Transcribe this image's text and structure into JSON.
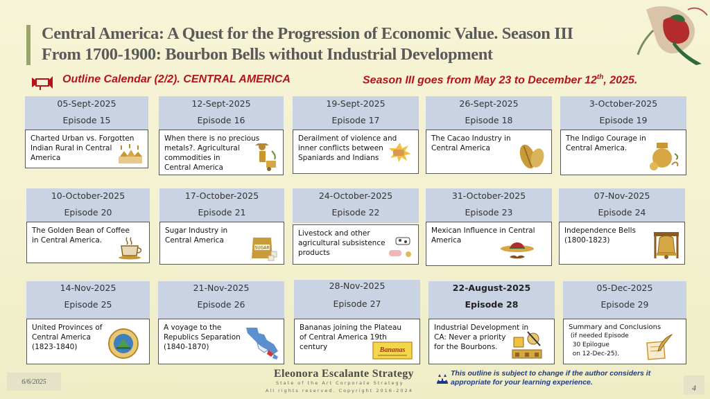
{
  "header": {
    "title_line1": "Central America:  A Quest for the Progression of Economic Value. Season III",
    "title_line2": "From 1700-1900: Bourbon Bells without Industrial Development"
  },
  "subheader": {
    "outline": "Outline Calendar (2/2).  CENTRAL AMERICA",
    "season_prefix": "Season III goes from May 23 to December 12",
    "season_sup": "th",
    "season_suffix": ", 2025."
  },
  "episodes": [
    {
      "date": "05-Sept-2025",
      "episode": "Episode 15",
      "lines": [
        "Charted Urban vs. Forgotten",
        "Indian Rural in Central",
        "America"
      ],
      "icon": "village-icon"
    },
    {
      "date": "12-Sept-2025",
      "episode": "Episode 16",
      "lines": [
        "When there is no precious",
        "metals?.  Agricultural",
        "commodities in",
        "Central America"
      ],
      "icon": "farmer-icon"
    },
    {
      "date": "19-Sept-2025",
      "episode": "Episode 17",
      "lines": [
        "Derailment of violence and",
        "inner conflicts between",
        "Spaniards and Indians"
      ],
      "icon": "fist-icon"
    },
    {
      "date": "26-Sept-2025",
      "episode": "Episode 18",
      "lines": [
        "The Cacao Industry in",
        "Central America"
      ],
      "icon": "cacao-icon"
    },
    {
      "date": "3-October-2025",
      "episode": "Episode 19",
      "lines": [
        "The Indigo Courage in",
        "Central America."
      ],
      "icon": "indigo-pot-icon"
    },
    {
      "date": "10-October-2025",
      "episode": "Episode 20",
      "lines": [
        "The Golden Bean of Coffee",
        "in Central America."
      ],
      "icon": "coffee-cup-icon"
    },
    {
      "date": "17-October-2025",
      "episode": "Episode 21",
      "lines": [
        "Sugar Industry in",
        "Central America"
      ],
      "icon": "sugar-bag-icon",
      "icon_label": "SUGAR"
    },
    {
      "date": "24-October-2025",
      "episode": "Episode 22",
      "lines": [
        "Livestock and other",
        "agricultural subsistence",
        "products"
      ],
      "icon": "livestock-icon"
    },
    {
      "date": "31-October-2025",
      "episode": "Episode 23",
      "lines": [
        "Mexican Influence in Central",
        "America"
      ],
      "icon": "sombrero-icon"
    },
    {
      "date": "07-Nov-2025",
      "episode": "Episode 24",
      "lines": [
        "Independence Bells",
        "(1800-1823)"
      ],
      "icon": "bell-icon"
    },
    {
      "date": "14-Nov-2025",
      "episode": "Episode 25",
      "lines": [
        "United Provinces of",
        "Central America",
        "(1823-1840)"
      ],
      "icon": "seal-icon"
    },
    {
      "date": "21-Nov-2025",
      "episode": "Episode 26",
      "lines": [
        "A voyage to the",
        "Republics Separation",
        "(1840-1870)"
      ],
      "icon": "map-icon"
    },
    {
      "date": "28-Nov-2025",
      "episode": "Episode 27",
      "lines": [
        "Bananas joining the Plateau",
        "of Central America 19th",
        "century"
      ],
      "icon": "banana-label-icon",
      "icon_label": "Bananas"
    },
    {
      "date": "22-August-2025",
      "episode": "Episode 28",
      "lines": [
        "Industrial Development in",
        "CA: Never a priority",
        "for the Bourbons."
      ],
      "icon": "industry-icon",
      "bold": true
    },
    {
      "date": "05-Dec-2025",
      "episode": "Episode 29",
      "lines": [
        "Summary and Conclusions",
        " (if needed Episode",
        "  30 Epilogue",
        "  on 12-Dec-25)."
      ],
      "icon": "quill-icon"
    }
  ],
  "footer": {
    "brand": "Eleonora Escalante Strategy",
    "tagline": "State of the Art Corporate Strategy",
    "rights": "All rights reserved. Copyright 2016-2024",
    "note_line1": "This outline is subject to change if the author considers it",
    "note_line2": "appropriate for your learning experience.",
    "date": "6/6/2025",
    "page": "4"
  },
  "colors": {
    "title": "#5a5a5a",
    "accent_red": "#b5121b",
    "card_header": "#c9d3e4",
    "note_blue": "#1f3a8a",
    "background": "#f6f4d6"
  }
}
